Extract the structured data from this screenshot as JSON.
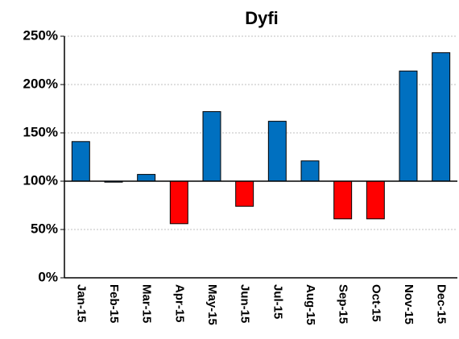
{
  "chart_data": {
    "type": "bar",
    "title": "Dyfi",
    "categories": [
      "Jan-15",
      "Feb-15",
      "Mar-15",
      "Apr-15",
      "May-15",
      "Jun-15",
      "Jul-15",
      "Aug-15",
      "Sep-15",
      "Oct-15",
      "Nov-15",
      "Dec-15"
    ],
    "values": [
      141,
      99,
      107,
      56,
      172,
      74,
      162,
      121,
      61,
      61,
      214,
      233
    ],
    "colors": [
      "#0070c0",
      "#0070c0",
      "#0070c0",
      "#ff0000",
      "#0070c0",
      "#ff0000",
      "#0070c0",
      "#0070c0",
      "#ff0000",
      "#ff0000",
      "#0070c0",
      "#0070c0"
    ],
    "baseline": 100,
    "ylim": [
      0,
      250
    ],
    "yticks": [
      {
        "value": 0,
        "label": "0%"
      },
      {
        "value": 50,
        "label": "50%"
      },
      {
        "value": 100,
        "label": "100%"
      },
      {
        "value": 150,
        "label": "150%"
      },
      {
        "value": 200,
        "label": "200%"
      },
      {
        "value": 250,
        "label": "250%"
      }
    ],
    "grid": true
  }
}
